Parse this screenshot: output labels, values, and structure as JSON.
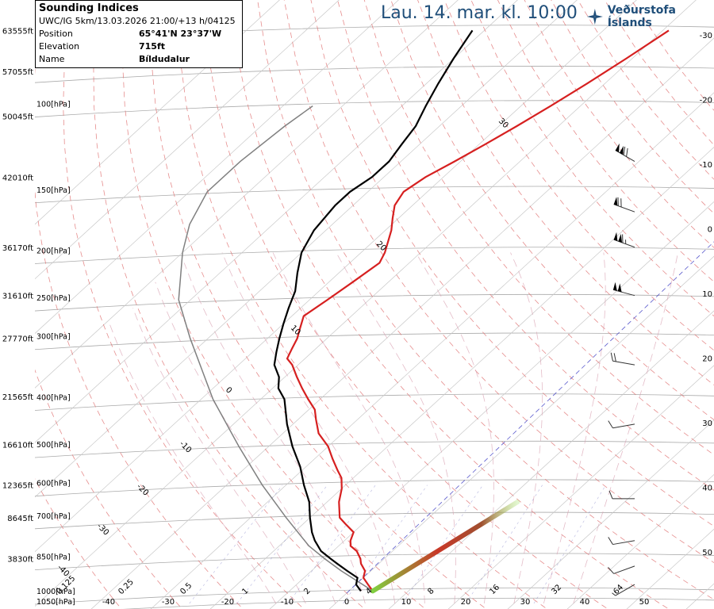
{
  "header": {
    "date_label": "Lau. 14. mar. kl. 10:00",
    "brand_label": "Veðurstofa Íslands",
    "brand_color": "#1f4e79"
  },
  "infobox": {
    "title": "Sounding Indices",
    "model_line": "UWC/IG 5km/13.03.2026 21:00/+13 h/04125",
    "rows": [
      {
        "key": "Position",
        "value": "65°41'N 23°37'W"
      },
      {
        "key": "Elevation",
        "value": "715ft"
      },
      {
        "key": "Name",
        "value": "Bíldudalur"
      }
    ]
  },
  "chart_data": {
    "type": "line",
    "diagram": "skew-T log-p",
    "colors": {
      "temperature": "#d62020",
      "dewpoint": "#000000",
      "parcel": "#808080",
      "isobar": "#aaaaaa",
      "isotherm": "#c8c8c8",
      "dry_adiabat": "#e07070",
      "moist_adiabat": "#d9a0b0",
      "mixing_ratio": "#7070c0"
    },
    "y_left_altitude_ft": [
      {
        "label": "63555ft",
        "p": 70
      },
      {
        "label": "57055ft",
        "p": 85
      },
      {
        "label": "50045ft",
        "p": 105
      },
      {
        "label": "42010ft",
        "p": 140
      },
      {
        "label": "36170ft",
        "p": 195
      },
      {
        "label": "31610ft",
        "p": 245
      },
      {
        "label": "27770ft",
        "p": 300
      },
      {
        "label": "21565ft",
        "p": 395
      },
      {
        "label": "16610ft",
        "p": 495
      },
      {
        "label": "12365ft",
        "p": 600
      },
      {
        "label": "8645ft",
        "p": 700
      },
      {
        "label": "3830ft",
        "p": 850
      }
    ],
    "pressure_labels": [
      {
        "label": "100[hPa]",
        "p": 100
      },
      {
        "label": "150[hPa]",
        "p": 150
      },
      {
        "label": "200[hPa]",
        "p": 200
      },
      {
        "label": "250[hPa]",
        "p": 250
      },
      {
        "label": "300[hPa]",
        "p": 300
      },
      {
        "label": "400[hPa]",
        "p": 400
      },
      {
        "label": "500[hPa]",
        "p": 500
      },
      {
        "label": "600[hPa]",
        "p": 600
      },
      {
        "label": "700[hPa]",
        "p": 700
      },
      {
        "label": "850[hPa]",
        "p": 850
      },
      {
        "label": "1000[hPa]",
        "p": 1000
      },
      {
        "label": "1050[hPa]",
        "p": 1050
      }
    ],
    "right_scale_labels": [
      "-30",
      "-20",
      "-10",
      "0",
      "10",
      "20",
      "30",
      "40",
      "50"
    ],
    "bottom_temp_labels": [
      "-40",
      "-30",
      "-20",
      "-10",
      "0",
      "10",
      "20",
      "30",
      "40",
      "50"
    ],
    "mixing_ratio_labels": [
      "0.125",
      "0.25",
      "0.5",
      "1",
      "2",
      "4",
      "8",
      "16",
      "32",
      "64"
    ],
    "isotherm_labels": [
      "30",
      "20",
      "10",
      "0",
      "-10",
      "-20",
      "-30",
      "-40"
    ],
    "temperature_series": {
      "name": "",
      "points": [
        [
          990,
          4
        ],
        [
          960,
          2
        ],
        [
          930,
          0
        ],
        [
          900,
          -1
        ],
        [
          870,
          -3
        ],
        [
          850,
          -4
        ],
        [
          820,
          -6
        ],
        [
          800,
          -8
        ],
        [
          780,
          -9
        ],
        [
          750,
          -10
        ],
        [
          720,
          -13
        ],
        [
          700,
          -15
        ],
        [
          650,
          -18
        ],
        [
          610,
          -20
        ],
        [
          580,
          -22
        ],
        [
          560,
          -24
        ],
        [
          530,
          -27
        ],
        [
          500,
          -30
        ],
        [
          470,
          -34
        ],
        [
          440,
          -37
        ],
        [
          420,
          -39
        ],
        [
          400,
          -42
        ],
        [
          380,
          -45
        ],
        [
          360,
          -48
        ],
        [
          340,
          -51
        ],
        [
          330,
          -53
        ],
        [
          315,
          -54
        ],
        [
          300,
          -55
        ],
        [
          290,
          -56
        ],
        [
          270,
          -58
        ],
        [
          250,
          -57
        ],
        [
          230,
          -56
        ],
        [
          210,
          -55
        ],
        [
          200,
          -56
        ],
        [
          180,
          -59
        ],
        [
          170,
          -61
        ],
        [
          160,
          -63
        ],
        [
          150,
          -64
        ],
        [
          140,
          -63
        ],
        [
          130,
          -61
        ],
        [
          120,
          -59
        ],
        [
          110,
          -57
        ],
        [
          100,
          -55
        ],
        [
          90,
          -53
        ],
        [
          80,
          -51
        ],
        [
          70,
          -49
        ]
      ]
    },
    "dewpoint_series": {
      "name": "",
      "points": [
        [
          990,
          2
        ],
        [
          960,
          0
        ],
        [
          930,
          -1
        ],
        [
          900,
          -4
        ],
        [
          870,
          -7
        ],
        [
          850,
          -9
        ],
        [
          820,
          -12
        ],
        [
          780,
          -15
        ],
        [
          750,
          -17
        ],
        [
          700,
          -20
        ],
        [
          650,
          -23
        ],
        [
          600,
          -27
        ],
        [
          550,
          -31
        ],
        [
          500,
          -36
        ],
        [
          450,
          -41
        ],
        [
          400,
          -46
        ],
        [
          380,
          -49
        ],
        [
          360,
          -51
        ],
        [
          340,
          -54
        ],
        [
          320,
          -56
        ],
        [
          300,
          -58
        ],
        [
          280,
          -60
        ],
        [
          260,
          -62
        ],
        [
          240,
          -64
        ],
        [
          220,
          -67
        ],
        [
          200,
          -70
        ],
        [
          180,
          -72
        ],
        [
          160,
          -73
        ],
        [
          150,
          -73
        ],
        [
          140,
          -72
        ],
        [
          130,
          -72
        ],
        [
          120,
          -73
        ],
        [
          110,
          -74
        ],
        [
          100,
          -76
        ],
        [
          90,
          -78
        ],
        [
          80,
          -80
        ],
        [
          70,
          -82
        ]
      ]
    },
    "parcel_series": {
      "name": "",
      "points": [
        [
          990,
          4
        ],
        [
          900,
          -5
        ],
        [
          850,
          -10
        ],
        [
          800,
          -15
        ],
        [
          700,
          -24
        ],
        [
          600,
          -34
        ],
        [
          500,
          -45
        ],
        [
          400,
          -58
        ],
        [
          300,
          -73
        ],
        [
          250,
          -82
        ],
        [
          200,
          -90
        ],
        [
          175,
          -94
        ],
        [
          150,
          -97
        ],
        [
          130,
          -97
        ],
        [
          110,
          -96
        ],
        [
          100,
          -95
        ]
      ]
    },
    "wind_barbs": [
      {
        "p": 130,
        "dir": 300,
        "kt": 120
      },
      {
        "p": 165,
        "dir": 290,
        "kt": 70
      },
      {
        "p": 195,
        "dir": 290,
        "kt": 115
      },
      {
        "p": 245,
        "dir": 285,
        "kt": 100
      },
      {
        "p": 340,
        "dir": 280,
        "kt": 20
      },
      {
        "p": 450,
        "dir": 260,
        "kt": 10
      },
      {
        "p": 640,
        "dir": 270,
        "kt": 10
      },
      {
        "p": 780,
        "dir": 260,
        "kt": 10
      },
      {
        "p": 880,
        "dir": 250,
        "kt": 10
      },
      {
        "p": 960,
        "dir": 240,
        "kt": 5
      }
    ]
  }
}
